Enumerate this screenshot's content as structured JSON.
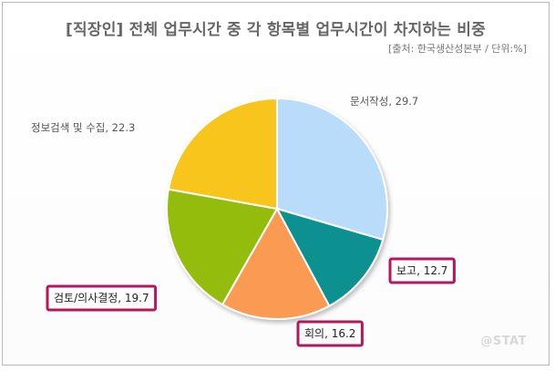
{
  "title": "[직장인] 전체 업무시간 중 각 항목별 업무시간이 차지하는 비중",
  "source": "[출처: 한국생산성본부 / 단위:%]",
  "watermark": "@STAT",
  "chart_data": {
    "type": "pie",
    "title": "[직장인] 전체 업무시간 중 각 항목별 업무시간이 차지하는 비중",
    "unit": "%",
    "slices": [
      {
        "label": "문서작성",
        "value": 29.7,
        "color": "#b8dcfa",
        "highlight": false
      },
      {
        "label": "보고",
        "value": 12.7,
        "color": "#0e9090",
        "highlight": true
      },
      {
        "label": "회의",
        "value": 16.2,
        "color": "#fb9a52",
        "highlight": true
      },
      {
        "label": "검토/의사결정",
        "value": 19.7,
        "color": "#94bc0e",
        "highlight": true
      },
      {
        "label": "정보검색 및 수집",
        "value": 22.3,
        "color": "#f7c51c",
        "highlight": false
      }
    ],
    "highlight_color": "#b5175a"
  }
}
